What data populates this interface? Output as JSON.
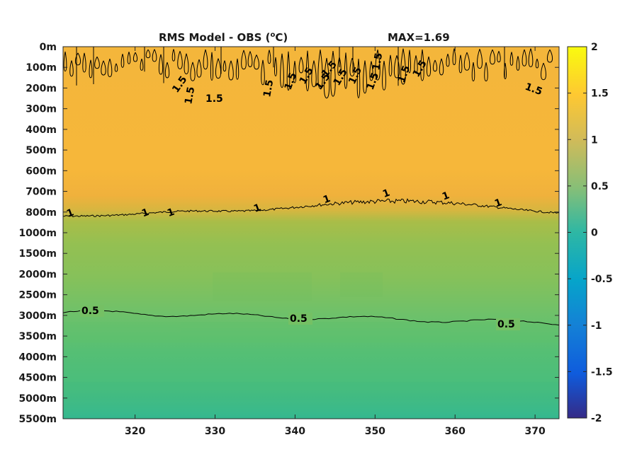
{
  "chart_data": {
    "type": "heatmap",
    "title": "RMS Model - OBS (",
    "title_unit_sup": "o",
    "title_unit_end": "C)",
    "max_label": "MAX=1.69",
    "xlabel": "",
    "ylabel": "",
    "x_ticks": [
      320,
      330,
      340,
      350,
      360,
      370
    ],
    "xlim": [
      311,
      373
    ],
    "y_tick_labels": [
      "0m",
      "100m",
      "200m",
      "300m",
      "400m",
      "500m",
      "600m",
      "700m",
      "800m",
      "1000m",
      "1500m",
      "2000m",
      "2500m",
      "3000m",
      "3500m",
      "4000m",
      "4500m",
      "5000m",
      "5500m"
    ],
    "colorbar": {
      "range": [
        -2,
        2
      ],
      "ticks": [
        "2",
        "1.5",
        "1",
        "0.5",
        "0",
        "-0.5",
        "-1",
        "-1.5",
        "-2"
      ],
      "colormap": "parula"
    },
    "depth_profile": [
      {
        "depth": "0m",
        "value": 1.3
      },
      {
        "depth": "300m",
        "value": 1.3
      },
      {
        "depth": "600m",
        "value": 1.25
      },
      {
        "depth": "700m",
        "value": 1.15
      },
      {
        "depth": "800m",
        "value": 1.0
      },
      {
        "depth": "1000m",
        "value": 0.85
      },
      {
        "depth": "1500m",
        "value": 0.72
      },
      {
        "depth": "2000m",
        "value": 0.65
      },
      {
        "depth": "3000m",
        "value": 0.52
      },
      {
        "depth": "4000m",
        "value": 0.42
      },
      {
        "depth": "5000m",
        "value": 0.38
      },
      {
        "depth": "5500m",
        "value": 0.3
      }
    ],
    "contours": [
      {
        "level": 1.5,
        "labels": [
          "1.5",
          "1.5",
          "1.5",
          "1.5",
          "1.5",
          "1.5",
          "1.5",
          "1.5",
          "1.5",
          "1.5",
          "1.5",
          "1.5",
          "1.5",
          "1.5",
          "1.5"
        ]
      },
      {
        "level": 1,
        "labels": [
          "1",
          "1",
          "1",
          "1",
          "1",
          "1",
          "1",
          "1"
        ]
      },
      {
        "level": 0.5,
        "labels": [
          "0.5",
          "0.5",
          "0.5"
        ]
      }
    ]
  }
}
